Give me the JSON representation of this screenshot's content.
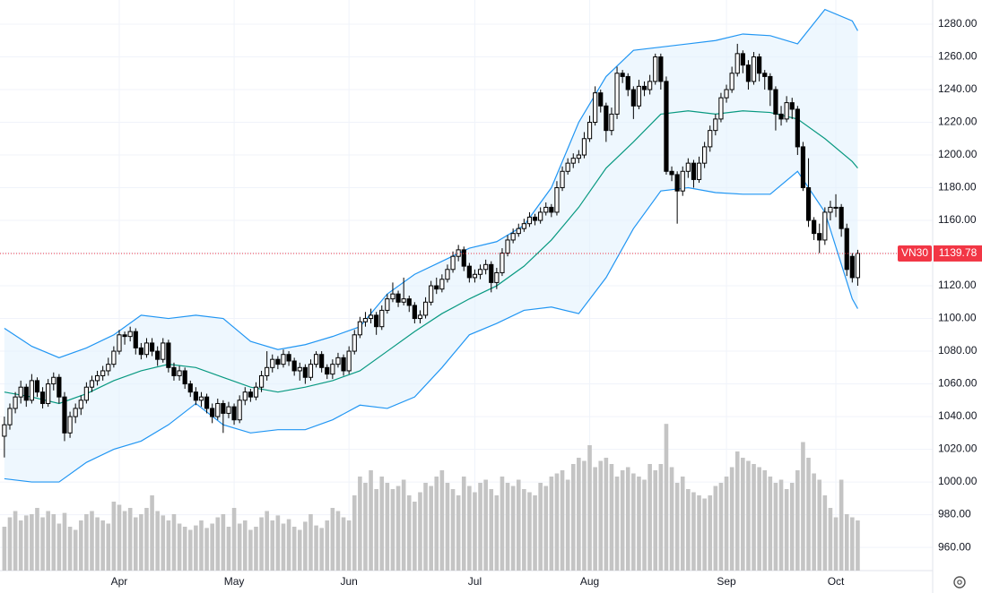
{
  "chart_data": {
    "type": "candlestick",
    "symbol": "VN30",
    "xlim": [
      -0.8,
      169.7
    ],
    "ylim": [
      945.8,
      1294.8
    ],
    "volume_lim": [
      0,
      300
    ],
    "grid": true,
    "up_color": "#ffffff",
    "down_color": "#000000",
    "volume_color": "#c4c4c4",
    "band_fill": "#e3f2fd",
    "last_color": "#f23645",
    "xticks": [
      {
        "value": 21,
        "label": "Apr"
      },
      {
        "value": 42,
        "label": "May"
      },
      {
        "value": 63,
        "label": "Jun"
      },
      {
        "value": 86,
        "label": "Jul"
      },
      {
        "value": 107,
        "label": "Aug"
      },
      {
        "value": 132,
        "label": "Sep"
      },
      {
        "value": 152,
        "label": "Oct"
      }
    ],
    "yticks": [
      {
        "value": 960,
        "label": "960.00"
      },
      {
        "value": 980,
        "label": "980.00"
      },
      {
        "value": 1000,
        "label": "1000.00"
      },
      {
        "value": 1020,
        "label": "1020.00"
      },
      {
        "value": 1040,
        "label": "1040.00"
      },
      {
        "value": 1060,
        "label": "1060.00"
      },
      {
        "value": 1080,
        "label": "1080.00"
      },
      {
        "value": 1100,
        "label": "1100.00"
      },
      {
        "value": 1120,
        "label": "1120.00"
      },
      {
        "value": 1140,
        "label": "1140.00"
      },
      {
        "value": 1160,
        "label": "1160.00"
      },
      {
        "value": 1180,
        "label": "1180.00"
      },
      {
        "value": 1200,
        "label": "1200.00"
      },
      {
        "value": 1220,
        "label": "1220.00"
      },
      {
        "value": 1240,
        "label": "1240.00"
      },
      {
        "value": 1260,
        "label": "1260.00"
      },
      {
        "value": 1280,
        "label": "1280.00"
      }
    ],
    "ohlc": [
      [
        1028,
        1040,
        1015,
        1035
      ],
      [
        1035,
        1048,
        1032,
        1045
      ],
      [
        1045,
        1055,
        1042,
        1052
      ],
      [
        1052,
        1062,
        1048,
        1058
      ],
      [
        1058,
        1060,
        1046,
        1050
      ],
      [
        1050,
        1066,
        1048,
        1062
      ],
      [
        1062,
        1064,
        1052,
        1055
      ],
      [
        1055,
        1058,
        1045,
        1048
      ],
      [
        1048,
        1063,
        1046,
        1060
      ],
      [
        1060,
        1067,
        1056,
        1064
      ],
      [
        1064,
        1066,
        1048,
        1052
      ],
      [
        1052,
        1055,
        1025,
        1030
      ],
      [
        1030,
        1043,
        1027,
        1040
      ],
      [
        1040,
        1048,
        1036,
        1045
      ],
      [
        1045,
        1053,
        1041,
        1050
      ],
      [
        1050,
        1061,
        1048,
        1058
      ],
      [
        1058,
        1065,
        1055,
        1062
      ],
      [
        1062,
        1068,
        1059,
        1065
      ],
      [
        1065,
        1071,
        1062,
        1068
      ],
      [
        1068,
        1076,
        1065,
        1072
      ],
      [
        1072,
        1083,
        1070,
        1080
      ],
      [
        1080,
        1093,
        1078,
        1090
      ],
      [
        1090,
        1092,
        1084,
        1089
      ],
      [
        1089,
        1095,
        1086,
        1092
      ],
      [
        1092,
        1094,
        1078,
        1082
      ],
      [
        1082,
        1085,
        1075,
        1078
      ],
      [
        1078,
        1088,
        1076,
        1085
      ],
      [
        1085,
        1088,
        1077,
        1080
      ],
      [
        1080,
        1083,
        1071,
        1075
      ],
      [
        1075,
        1088,
        1073,
        1085
      ],
      [
        1085,
        1087,
        1067,
        1070
      ],
      [
        1070,
        1073,
        1062,
        1065
      ],
      [
        1065,
        1071,
        1062,
        1068
      ],
      [
        1068,
        1070,
        1057,
        1060
      ],
      [
        1060,
        1062,
        1052,
        1055
      ],
      [
        1055,
        1058,
        1047,
        1050
      ],
      [
        1050,
        1055,
        1046,
        1052
      ],
      [
        1052,
        1054,
        1042,
        1045
      ],
      [
        1045,
        1048,
        1036,
        1040
      ],
      [
        1040,
        1051,
        1038,
        1048
      ],
      [
        1048,
        1050,
        1030,
        1042
      ],
      [
        1042,
        1049,
        1039,
        1046
      ],
      [
        1046,
        1048,
        1035,
        1038
      ],
      [
        1038,
        1053,
        1036,
        1050
      ],
      [
        1050,
        1058,
        1047,
        1055
      ],
      [
        1055,
        1057,
        1049,
        1052
      ],
      [
        1052,
        1061,
        1050,
        1058
      ],
      [
        1058,
        1068,
        1055,
        1065
      ],
      [
        1065,
        1080,
        1062,
        1070
      ],
      [
        1070,
        1078,
        1067,
        1075
      ],
      [
        1075,
        1077,
        1069,
        1072
      ],
      [
        1072,
        1081,
        1070,
        1078
      ],
      [
        1078,
        1080,
        1071,
        1074
      ],
      [
        1074,
        1076,
        1065,
        1068
      ],
      [
        1068,
        1073,
        1062,
        1070
      ],
      [
        1070,
        1072,
        1060,
        1064
      ],
      [
        1064,
        1075,
        1062,
        1072
      ],
      [
        1072,
        1080,
        1070,
        1078
      ],
      [
        1078,
        1080,
        1067,
        1070
      ],
      [
        1070,
        1072,
        1063,
        1066
      ],
      [
        1066,
        1075,
        1063,
        1072
      ],
      [
        1072,
        1079,
        1070,
        1076
      ],
      [
        1076,
        1078,
        1065,
        1068
      ],
      [
        1068,
        1083,
        1066,
        1080
      ],
      [
        1080,
        1093,
        1078,
        1090
      ],
      [
        1090,
        1101,
        1088,
        1098
      ],
      [
        1098,
        1104,
        1095,
        1100
      ],
      [
        1100,
        1106,
        1097,
        1102
      ],
      [
        1102,
        1104,
        1090,
        1095
      ],
      [
        1095,
        1108,
        1093,
        1105
      ],
      [
        1105,
        1115,
        1103,
        1112
      ],
      [
        1112,
        1122,
        1110,
        1115
      ],
      [
        1115,
        1117,
        1107,
        1110
      ],
      [
        1110,
        1125,
        1108,
        1112
      ],
      [
        1112,
        1114,
        1104,
        1108
      ],
      [
        1108,
        1110,
        1097,
        1100
      ],
      [
        1100,
        1105,
        1097,
        1102
      ],
      [
        1102,
        1113,
        1100,
        1110
      ],
      [
        1110,
        1123,
        1108,
        1120
      ],
      [
        1120,
        1125,
        1115,
        1118
      ],
      [
        1118,
        1127,
        1116,
        1124
      ],
      [
        1124,
        1133,
        1122,
        1130
      ],
      [
        1130,
        1141,
        1128,
        1138
      ],
      [
        1138,
        1145,
        1135,
        1142
      ],
      [
        1142,
        1144,
        1129,
        1132
      ],
      [
        1132,
        1134,
        1122,
        1125
      ],
      [
        1125,
        1130,
        1122,
        1127
      ],
      [
        1127,
        1133,
        1124,
        1130
      ],
      [
        1130,
        1136,
        1127,
        1133
      ],
      [
        1133,
        1135,
        1116,
        1122
      ],
      [
        1122,
        1131,
        1118,
        1128
      ],
      [
        1128,
        1143,
        1126,
        1140
      ],
      [
        1140,
        1151,
        1138,
        1148
      ],
      [
        1148,
        1155,
        1146,
        1152
      ],
      [
        1152,
        1158,
        1150,
        1155
      ],
      [
        1155,
        1161,
        1153,
        1158
      ],
      [
        1158,
        1165,
        1156,
        1162
      ],
      [
        1162,
        1164,
        1157,
        1160
      ],
      [
        1160,
        1168,
        1158,
        1165
      ],
      [
        1165,
        1171,
        1163,
        1168
      ],
      [
        1168,
        1170,
        1162,
        1165
      ],
      [
        1165,
        1184,
        1163,
        1180
      ],
      [
        1180,
        1193,
        1178,
        1190
      ],
      [
        1190,
        1198,
        1188,
        1195
      ],
      [
        1195,
        1201,
        1192,
        1198
      ],
      [
        1198,
        1203,
        1195,
        1200
      ],
      [
        1200,
        1214,
        1198,
        1210
      ],
      [
        1210,
        1224,
        1208,
        1220
      ],
      [
        1220,
        1242,
        1218,
        1238
      ],
      [
        1238,
        1240,
        1226,
        1230
      ],
      [
        1230,
        1232,
        1208,
        1215
      ],
      [
        1215,
        1229,
        1212,
        1225
      ],
      [
        1225,
        1254,
        1222,
        1250
      ],
      [
        1250,
        1252,
        1244,
        1248
      ],
      [
        1248,
        1250,
        1236,
        1240
      ],
      [
        1240,
        1242,
        1222,
        1230
      ],
      [
        1230,
        1246,
        1228,
        1242
      ],
      [
        1242,
        1245,
        1236,
        1240
      ],
      [
        1240,
        1249,
        1237,
        1245
      ],
      [
        1245,
        1262,
        1243,
        1260
      ],
      [
        1260,
        1262,
        1240,
        1245
      ],
      [
        1245,
        1248,
        1188,
        1190
      ],
      [
        1190,
        1193,
        1184,
        1188
      ],
      [
        1188,
        1190,
        1158,
        1178
      ],
      [
        1178,
        1193,
        1175,
        1190
      ],
      [
        1190,
        1198,
        1186,
        1195
      ],
      [
        1195,
        1197,
        1180,
        1185
      ],
      [
        1185,
        1199,
        1183,
        1195
      ],
      [
        1195,
        1208,
        1192,
        1205
      ],
      [
        1205,
        1218,
        1202,
        1215
      ],
      [
        1215,
        1225,
        1212,
        1222
      ],
      [
        1222,
        1238,
        1220,
        1235
      ],
      [
        1235,
        1243,
        1232,
        1240
      ],
      [
        1240,
        1254,
        1238,
        1250
      ],
      [
        1250,
        1268,
        1248,
        1262
      ],
      [
        1262,
        1264,
        1250,
        1255
      ],
      [
        1255,
        1258,
        1240,
        1245
      ],
      [
        1245,
        1263,
        1243,
        1260
      ],
      [
        1260,
        1262,
        1245,
        1250
      ],
      [
        1250,
        1252,
        1240,
        1248
      ],
      [
        1248,
        1250,
        1230,
        1240
      ],
      [
        1240,
        1242,
        1215,
        1225
      ],
      [
        1225,
        1230,
        1218,
        1222
      ],
      [
        1222,
        1236,
        1220,
        1232
      ],
      [
        1232,
        1235,
        1222,
        1228
      ],
      [
        1228,
        1230,
        1200,
        1205
      ],
      [
        1205,
        1208,
        1178,
        1180
      ],
      [
        1180,
        1198,
        1156,
        1160
      ],
      [
        1160,
        1162,
        1148,
        1152
      ],
      [
        1152,
        1158,
        1140,
        1148
      ],
      [
        1148,
        1168,
        1145,
        1165
      ],
      [
        1165,
        1172,
        1160,
        1168
      ],
      [
        1168,
        1176,
        1162,
        1168
      ],
      [
        1168,
        1170,
        1150,
        1155
      ],
      [
        1155,
        1158,
        1126,
        1130
      ],
      [
        1138,
        1140,
        1122,
        1125
      ],
      [
        1125,
        1142,
        1120,
        1139.78
      ]
    ],
    "volume": [
      70,
      85,
      95,
      80,
      88,
      90,
      100,
      85,
      95,
      90,
      75,
      92,
      70,
      65,
      80,
      90,
      95,
      85,
      80,
      75,
      110,
      105,
      95,
      100,
      85,
      90,
      100,
      120,
      95,
      88,
      80,
      90,
      75,
      70,
      65,
      72,
      80,
      68,
      75,
      85,
      90,
      70,
      100,
      75,
      80,
      65,
      70,
      85,
      95,
      80,
      88,
      75,
      82,
      70,
      65,
      78,
      90,
      72,
      68,
      80,
      100,
      95,
      85,
      80,
      120,
      150,
      140,
      160,
      130,
      150,
      140,
      130,
      135,
      145,
      120,
      110,
      125,
      140,
      135,
      150,
      160,
      140,
      130,
      120,
      150,
      135,
      125,
      140,
      145,
      130,
      120,
      150,
      140,
      135,
      145,
      130,
      125,
      120,
      140,
      135,
      150,
      155,
      160,
      145,
      170,
      180,
      175,
      200,
      165,
      175,
      180,
      170,
      150,
      160,
      165,
      155,
      150,
      145,
      170,
      160,
      170,
      234,
      165,
      140,
      150,
      130,
      125,
      120,
      115,
      120,
      135,
      140,
      150,
      165,
      190,
      180,
      175,
      170,
      165,
      160,
      150,
      140,
      145,
      130,
      140,
      160,
      205,
      180,
      155,
      145,
      120,
      100,
      85,
      145,
      90,
      85,
      80
    ],
    "bands": [
      {
        "color": "#2196f3",
        "x": [
          0,
          5,
          10,
          15,
          20,
          25,
          30,
          35,
          40,
          45,
          50,
          55,
          60,
          65,
          70,
          75,
          80,
          85,
          90,
          95,
          100,
          105,
          110,
          115,
          120,
          125,
          130,
          135,
          140,
          145,
          150,
          155,
          156
        ],
        "values": [
          1094,
          1083,
          1076,
          1082,
          1090,
          1102,
          1100,
          1102,
          1100,
          1086,
          1081,
          1084,
          1089,
          1095,
          1115,
          1127,
          1135,
          1143,
          1147,
          1157,
          1180,
          1220,
          1248,
          1264,
          1266,
          1268,
          1270,
          1274,
          1273,
          1268,
          1289,
          1282,
          1276
        ]
      },
      {
        "color": "#089981",
        "x": [
          0,
          5,
          10,
          15,
          20,
          25,
          30,
          35,
          40,
          45,
          50,
          55,
          60,
          65,
          70,
          75,
          80,
          85,
          90,
          95,
          100,
          105,
          110,
          115,
          120,
          125,
          130,
          135,
          140,
          145,
          150,
          155,
          156
        ],
        "values": [
          1055,
          1052,
          1048,
          1054,
          1062,
          1068,
          1072,
          1070,
          1064,
          1058,
          1055,
          1058,
          1062,
          1068,
          1080,
          1092,
          1103,
          1112,
          1120,
          1132,
          1148,
          1168,
          1192,
          1208,
          1225,
          1227,
          1225,
          1227,
          1226,
          1222,
          1210,
          1196,
          1192
        ]
      },
      {
        "color": "#2196f3",
        "x": [
          0,
          5,
          10,
          15,
          20,
          25,
          30,
          35,
          40,
          45,
          50,
          55,
          60,
          65,
          70,
          75,
          80,
          85,
          90,
          95,
          100,
          105,
          110,
          115,
          120,
          125,
          130,
          135,
          140,
          145,
          150,
          155,
          156
        ],
        "values": [
          1002,
          1000,
          1000,
          1012,
          1020,
          1025,
          1035,
          1048,
          1035,
          1030,
          1032,
          1032,
          1038,
          1047,
          1045,
          1052,
          1070,
          1090,
          1097,
          1105,
          1107,
          1103,
          1125,
          1155,
          1178,
          1180,
          1177,
          1176,
          1176,
          1190,
          1165,
          1112,
          1106
        ]
      }
    ]
  }
}
